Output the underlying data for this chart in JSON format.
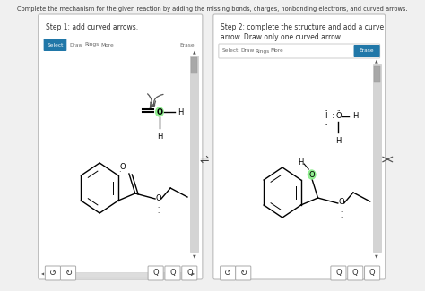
{
  "title": "Complete the mechanism for the given reaction by adding the missing bonds, charges, nonbonding electrons, and curved arrows.",
  "step1_title": "Step 1: add curved arrows.",
  "step2_title_line1": "Step 2: complete the structure and add a curve",
  "step2_title_line2": "arrow. Draw only one curved arrow.",
  "bg_color": "#f0f0f0",
  "panel_color": "#ffffff",
  "teal_color": "#2077a8",
  "toolbar_border": "#cccccc",
  "text_color": "#333333",
  "gray_text": "#666666",
  "scroll_bg": "#d4d4d4",
  "scroll_handle": "#a8a8a8"
}
